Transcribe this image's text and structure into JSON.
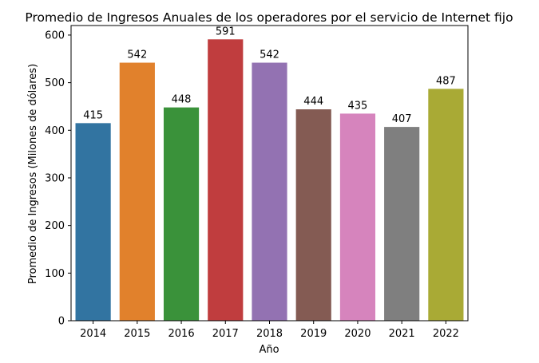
{
  "chart_data": {
    "type": "bar",
    "title": "Promedio de Ingresos Anuales de los operadores por el servicio de Internet fijo",
    "xlabel": "Año",
    "ylabel": "Promedio de Ingresos (Milones de dólares)",
    "categories": [
      "2014",
      "2015",
      "2016",
      "2017",
      "2018",
      "2019",
      "2020",
      "2021",
      "2022"
    ],
    "values": [
      415,
      542,
      448,
      591,
      542,
      444,
      435,
      407,
      487
    ],
    "data_labels": [
      "415",
      "542",
      "448",
      "591",
      "542",
      "444",
      "435",
      "407",
      "487"
    ],
    "colors": [
      "#3274a1",
      "#e1812c",
      "#3a923a",
      "#c03d3e",
      "#9372b2",
      "#845b53",
      "#d684bd",
      "#7f7f7f",
      "#a9aa35"
    ],
    "ylim": [
      0,
      620
    ],
    "yticks": [
      0,
      100,
      200,
      300,
      400,
      500,
      600
    ],
    "grid": false,
    "legend": "none"
  }
}
